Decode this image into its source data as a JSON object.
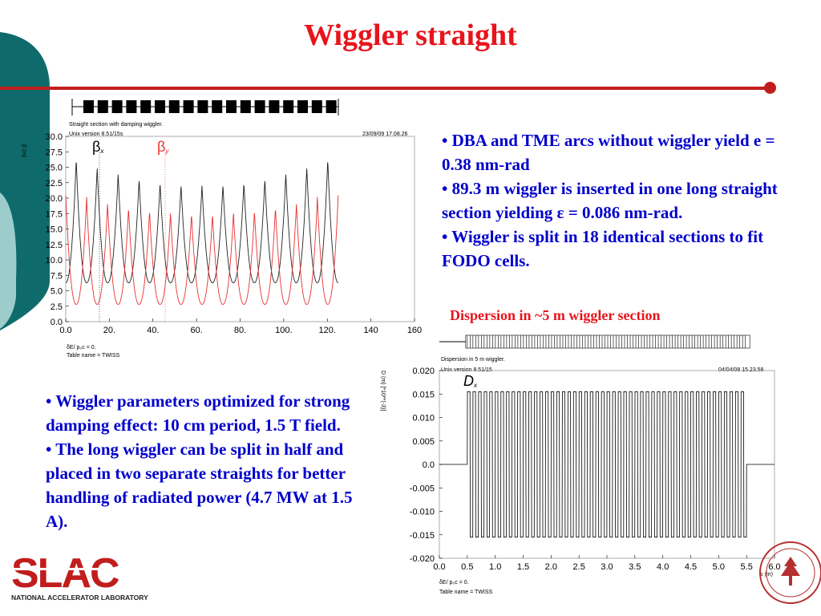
{
  "title": "Wiggler straight",
  "right_bullets": [
    "• DBA and TME arcs without wiggler yield e = 0.38 nm-rad",
    "• 89.3 m wiggler is inserted in one long straight section yielding ε = 0.086 nm-rad.",
    "• Wiggler is split in 18 identical sections to fit FODO cells."
  ],
  "left_bullets": [
    "• Wiggler parameters optimized for strong damping effect: 10 cm period, 1.5 T field.",
    "• The long wiggler can be split in half and placed in two separate straights for better handling of radiated power (4.7 MW at 1.5 A)."
  ],
  "dispersion_caption": "Dispersion in ~5 m wiggler section",
  "logo": {
    "text": "SLAC",
    "subtitle": "NATIONAL ACCELERATOR LABORATORY",
    "color": "#c21d1d"
  },
  "colors": {
    "title": "#e8141c",
    "body_text": "#0000cc",
    "rule": "#c21d1d",
    "teal": "#0f6b6b",
    "teal_light": "#9ccccc",
    "beta_x": "#222222",
    "beta_y": "#e83030"
  },
  "chart_data": [
    {
      "type": "line",
      "header": {
        "line1": "Straight section with damping wiggler.",
        "line2": "Unix version 8.51/15s",
        "date": "23/09/09 17.08.26"
      },
      "ylabel": "β (m)",
      "xlim": [
        0,
        160
      ],
      "ylim": [
        0,
        30
      ],
      "xticks": [
        "0.0",
        "20.",
        "40.",
        "60.",
        "80.",
        "100.",
        "120.",
        "140",
        "160"
      ],
      "yticks": [
        "0.0",
        "2.5",
        "5.0",
        "7.5",
        "10.0",
        "12.5",
        "15.0",
        "17.5",
        "20.0",
        "22.5",
        "25.0",
        "27.5",
        "30.0"
      ],
      "footer": {
        "line1": "δE/ p₀c = 0.",
        "line2": "Table name = TWISS"
      },
      "series": [
        {
          "name": "βx",
          "label_main": "β",
          "label_sub": "x",
          "cells": 13,
          "x_end": 125,
          "min": 6.3,
          "max_edge": 27.0,
          "max_mid": 22.0
        },
        {
          "name": "βy",
          "label_main": "β",
          "label_sub": "y",
          "cells": 13,
          "x_end": 125,
          "min": 2.8,
          "max_edge": 21.0,
          "max_mid": 17.3
        }
      ]
    },
    {
      "type": "line",
      "header": {
        "line1": "Dispersion in 5 m wiggler.",
        "line2": "Unix version 8.51/15",
        "date": "04/04/08 15.23.58"
      },
      "ylabel": "D (m)  [*10**(-3)]",
      "xlabel": "s (m)",
      "xlim": [
        0,
        6
      ],
      "ylim": [
        -0.02,
        0.02
      ],
      "xticks": [
        "0.0",
        "0.5",
        "1.0",
        "1.5",
        "2.0",
        "2.5",
        "3.0",
        "3.5",
        "4.0",
        "4.5",
        "5.0",
        "5.5",
        "6.0"
      ],
      "yticks": [
        "-0.020",
        "-0.015",
        "-0.010",
        "-0.005",
        "0.0",
        "0.005",
        "0.010",
        "0.015",
        "0.020"
      ],
      "footer": {
        "line1": "δE/ p₀c = 0.",
        "line2": "Table name = TWISS"
      },
      "series": [
        {
          "name": "Dx",
          "label_main": "D",
          "label_sub": "x",
          "x_start": 0.5,
          "x_end": 5.5,
          "periods": 50,
          "amplitude": 0.0155
        }
      ]
    }
  ]
}
